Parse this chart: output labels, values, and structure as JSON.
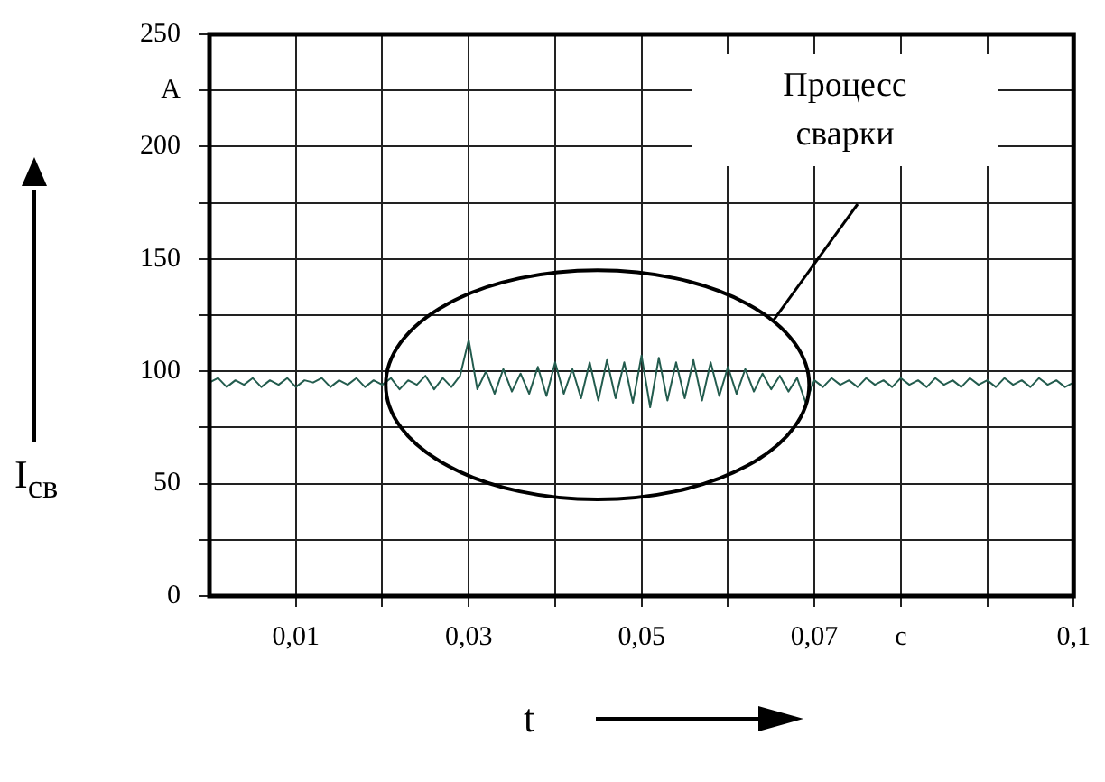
{
  "chart_data": {
    "type": "line",
    "xlabel": "t",
    "ylabel": "I$_{св}$",
    "annotations": [
      "Процесс сварки"
    ],
    "xlim": [
      0,
      0.1
    ],
    "xticks": [
      {
        "value": 0.01,
        "label": "0,01"
      },
      {
        "value": 0.02,
        "label": null
      },
      {
        "value": 0.03,
        "label": "0,03"
      },
      {
        "value": 0.04,
        "label": null
      },
      {
        "value": 0.05,
        "label": "0,05"
      },
      {
        "value": 0.06,
        "label": null
      },
      {
        "value": 0.07,
        "label": "0,07"
      },
      {
        "value": 0.08,
        "label": "c"
      },
      {
        "value": 0.09,
        "label": null
      },
      {
        "value": 0.1,
        "label": "0,1"
      }
    ],
    "ylim": [
      0,
      250
    ],
    "yticks": [
      0,
      {
        "value": 25,
        "label": null
      },
      50,
      {
        "value": 75,
        "label": null
      },
      100,
      {
        "value": 125,
        "label": null
      },
      150,
      {
        "value": 175,
        "label": null
      },
      200,
      {
        "value": 225,
        "label": "A"
      },
      250
    ],
    "grid": true,
    "legend": false,
    "marker": "none",
    "line_style": "solid",
    "x": [
      0,
      0.001,
      0.002,
      0.003,
      0.004,
      0.005,
      0.006,
      0.007,
      0.008,
      0.009,
      0.01,
      0.011,
      0.012,
      0.013,
      0.014,
      0.015,
      0.016,
      0.017,
      0.018,
      0.019,
      0.02,
      0.021,
      0.022,
      0.023,
      0.024,
      0.025,
      0.026,
      0.027,
      0.028,
      0.029,
      0.03,
      0.031,
      0.032,
      0.033,
      0.034,
      0.035,
      0.036,
      0.037,
      0.038,
      0.039,
      0.04,
      0.041,
      0.042,
      0.043,
      0.044,
      0.045,
      0.046,
      0.047,
      0.048,
      0.049,
      0.05,
      0.051,
      0.052,
      0.053,
      0.054,
      0.055,
      0.056,
      0.057,
      0.058,
      0.059,
      0.06,
      0.061,
      0.062,
      0.063,
      0.064,
      0.065,
      0.066,
      0.067,
      0.068,
      0.069,
      0.07,
      0.071,
      0.072,
      0.073,
      0.074,
      0.075,
      0.076,
      0.077,
      0.078,
      0.079,
      0.08,
      0.081,
      0.082,
      0.083,
      0.084,
      0.085,
      0.086,
      0.087,
      0.088,
      0.089,
      0.09,
      0.091,
      0.092,
      0.093,
      0.094,
      0.095,
      0.096,
      0.097,
      0.098,
      0.099,
      0.1
    ],
    "series": [
      {
        "color": "#235c4e",
        "values": [
          95,
          97,
          93,
          96,
          94,
          97,
          93,
          96,
          94,
          97,
          93,
          96,
          95,
          97,
          93,
          96,
          94,
          97,
          93,
          96,
          94,
          97,
          92,
          96,
          94,
          98,
          92,
          97,
          93,
          98,
          114,
          92,
          100,
          90,
          101,
          91,
          99,
          90,
          102,
          89,
          104,
          90,
          101,
          88,
          104,
          87,
          105,
          88,
          104,
          86,
          107,
          84,
          106,
          87,
          104,
          88,
          105,
          87,
          104,
          89,
          102,
          90,
          101,
          91,
          99,
          92,
          98,
          91,
          97,
          86,
          96,
          93,
          97,
          94,
          96,
          93,
          97,
          94,
          96,
          93,
          97,
          94,
          96,
          93,
          97,
          94,
          96,
          93,
          97,
          94,
          96,
          93,
          97,
          94,
          96,
          93,
          97,
          94,
          96,
          93,
          95
        ]
      }
    ]
  }
}
